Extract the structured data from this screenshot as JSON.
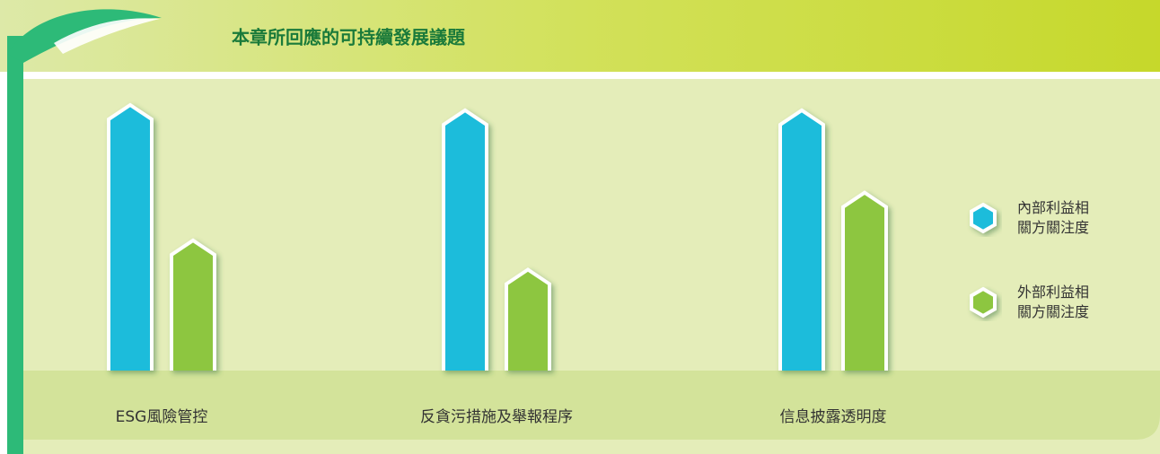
{
  "chart_data": {
    "type": "bar",
    "title": "本章所回應的可持續發展議題",
    "categories": [
      "ESG風險管控",
      "反貪污措施及舉報程序",
      "信息披露透明度"
    ],
    "series": [
      {
        "name": "內部利益相關方關注度",
        "color": "#1fbcdb",
        "values": [
          100,
          98,
          98
        ]
      },
      {
        "name": "外部利益相關方關注度",
        "color": "#8dc63f",
        "values": [
          49,
          38,
          67
        ]
      }
    ],
    "legend": "right"
  }
}
